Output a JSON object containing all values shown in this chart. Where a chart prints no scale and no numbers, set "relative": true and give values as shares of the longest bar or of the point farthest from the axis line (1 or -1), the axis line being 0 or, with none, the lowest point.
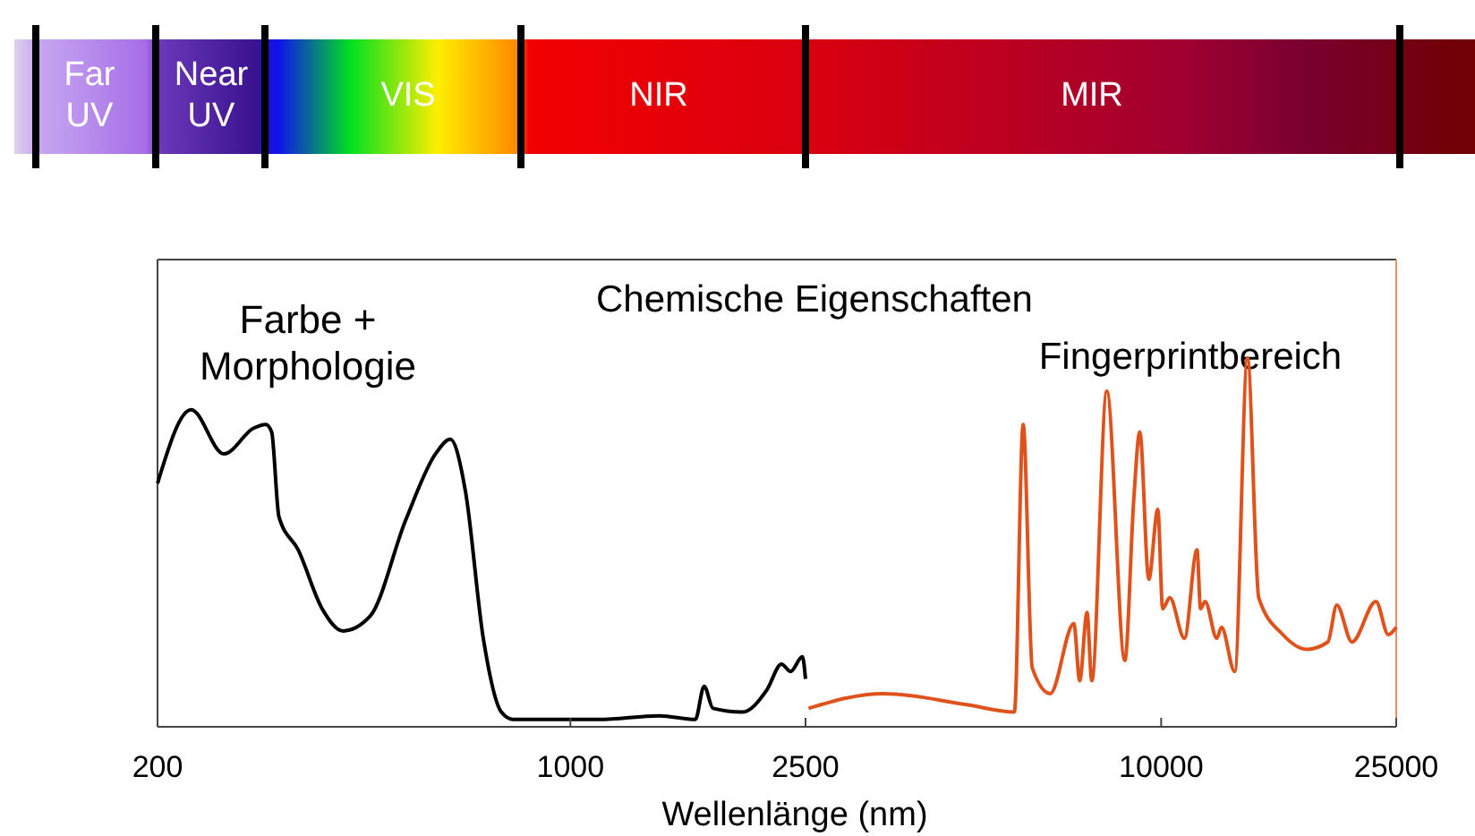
{
  "chart_data": {
    "type": "line",
    "xlabel": "Wellenlänge (nm)",
    "log": "x",
    "relative": true,
    "grid": false,
    "marker": "none",
    "line_style": "solid",
    "xlim": [
      200,
      25000
    ],
    "xticks": [
      200,
      1000,
      2500,
      10000,
      25000
    ],
    "annotations": [
      "Farbe + Morphologie",
      "Chemische Eigenschaften",
      "Fingerprintbereich",
      "Far UV",
      "Near UV",
      "VIS",
      "NIR",
      "MIR"
    ],
    "series": [
      {
        "color": "#000000",
        "x": [
          200,
          228,
          259,
          291,
          305,
          312,
          321,
          346,
          380,
          412,
          458,
          526,
          591,
          626,
          664,
          712,
          764,
          800,
          1118,
          1414,
          1627,
          1684,
          1743,
          1954,
          2150,
          2277,
          2358,
          2470,
          2500
        ],
        "values": [
          0.66,
          0.86,
          0.74,
          0.81,
          0.82,
          0.8,
          0.57,
          0.48,
          0.32,
          0.26,
          0.3,
          0.56,
          0.74,
          0.78,
          0.64,
          0.24,
          0.04,
          0.02,
          0.02,
          0.03,
          0.02,
          0.11,
          0.05,
          0.04,
          0.1,
          0.17,
          0.15,
          0.19,
          0.13
        ]
      },
      {
        "color": "#e0521c",
        "x": [
          2530,
          3382,
          4685,
          5643,
          5840,
          6050,
          6490,
          7115,
          7280,
          7490,
          7630,
          8090,
          8680,
          8990,
          9200,
          9530,
          9870,
          10060,
          10340,
          10950,
          11500,
          11660,
          11870,
          12420,
          12650,
          13320,
          14000,
          14630,
          16070,
          17640,
          19150,
          19830,
          21040,
          23100,
          24240,
          25000
        ],
        "values": [
          0.05,
          0.09,
          0.06,
          0.04,
          0.82,
          0.16,
          0.09,
          0.28,
          0.125,
          0.31,
          0.125,
          0.91,
          0.18,
          0.62,
          0.8,
          0.4,
          0.59,
          0.32,
          0.35,
          0.24,
          0.48,
          0.32,
          0.34,
          0.24,
          0.27,
          0.15,
          1.0,
          0.35,
          0.25,
          0.21,
          0.23,
          0.33,
          0.23,
          0.34,
          0.25,
          0.27
        ]
      }
    ]
  }
}
